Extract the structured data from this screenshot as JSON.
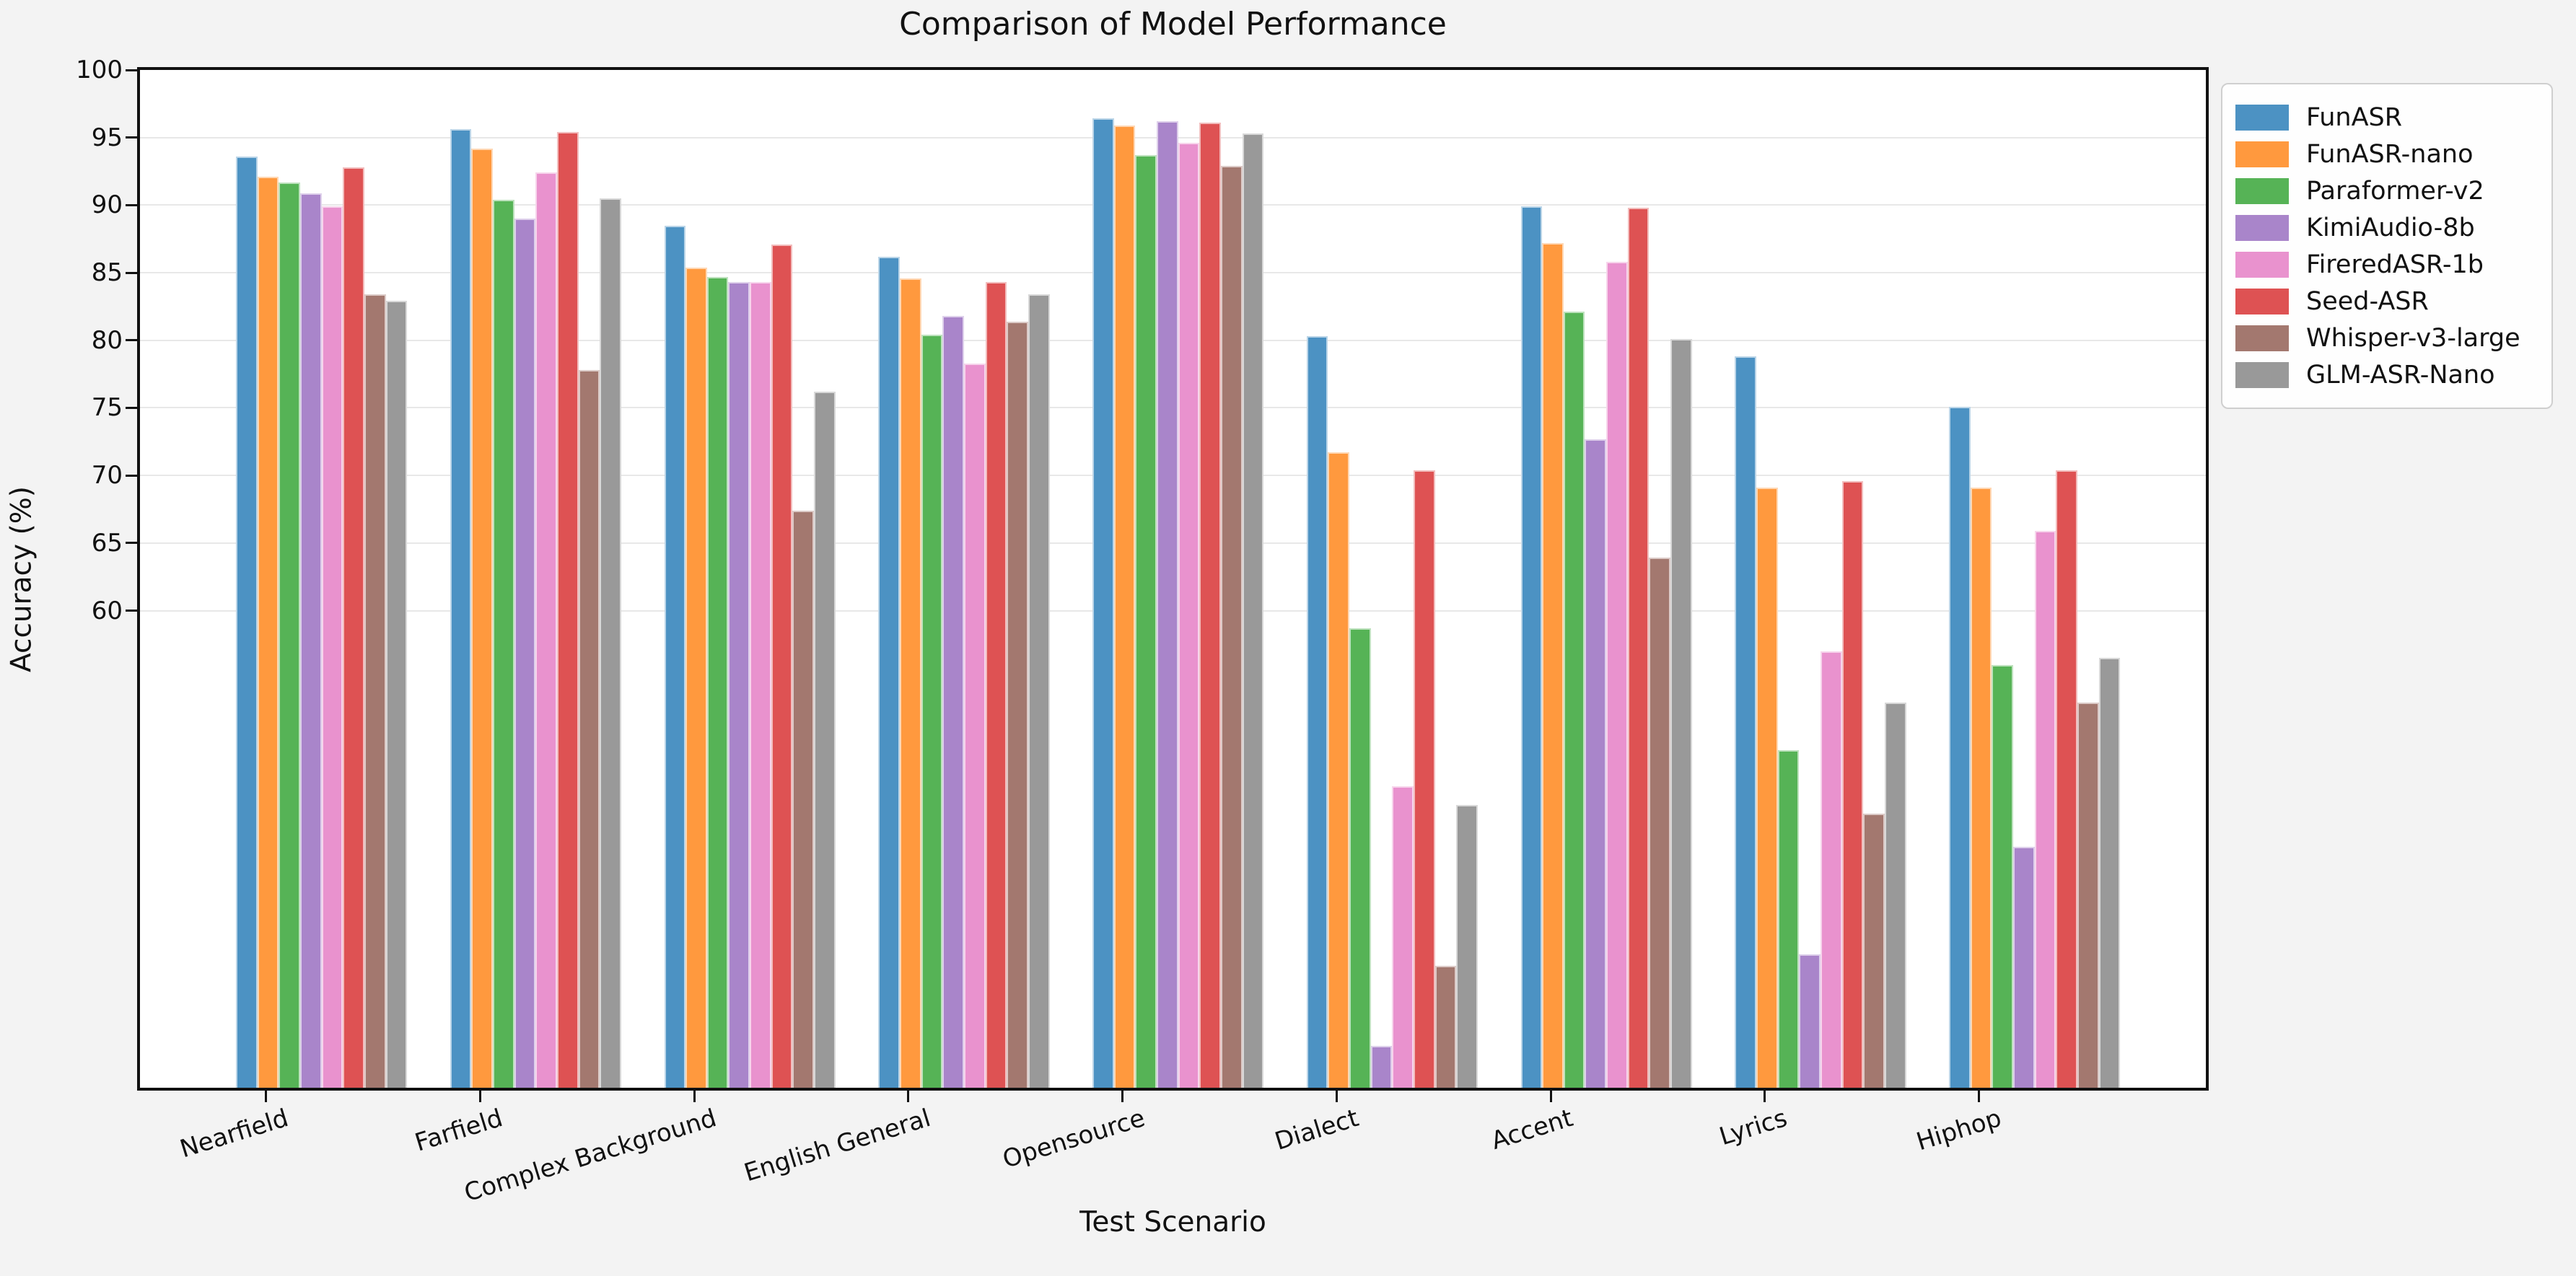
{
  "figure": {
    "title": "Comparison of Model Performance",
    "background_color": "#f3f3f3",
    "plot_background_color": "#ffffff",
    "grid_color": "#e8e8e8",
    "spine_color": "#111111"
  },
  "axes": {
    "xlabel": "Test Scenario",
    "ylabel": "Accuracy (%)"
  },
  "chart_data": {
    "type": "bar",
    "title": "Comparison of Model Performance",
    "xlabel": "Test Scenario",
    "ylabel": "Accuracy (%)",
    "ylim": [
      24.7,
      100
    ],
    "yticks": [
      60,
      65,
      70,
      75,
      80,
      85,
      90,
      95,
      100
    ],
    "grid": "horizontal",
    "legend_position": "outside upper right",
    "categories": [
      "Nearfield",
      "Farfield",
      "Complex Background",
      "English General",
      "Opensource",
      "Dialect",
      "Accent",
      "Lyrics",
      "Hiphop"
    ],
    "series": [
      {
        "name": "FunASR",
        "color": "#4C92C3",
        "values": [
          93.6,
          95.6,
          88.5,
          86.2,
          96.4,
          80.3,
          89.9,
          78.8,
          75.1
        ]
      },
      {
        "name": "FunASR-nano",
        "color": "#FF993E",
        "values": [
          92.1,
          94.2,
          85.4,
          84.6,
          95.9,
          71.7,
          87.2,
          69.1,
          69.1
        ]
      },
      {
        "name": "Paraformer-v2",
        "color": "#56B356",
        "values": [
          91.7,
          90.4,
          84.7,
          80.4,
          93.7,
          58.7,
          82.1,
          49.7,
          56.0
        ]
      },
      {
        "name": "KimiAudio-8b",
        "color": "#A985CA",
        "values": [
          90.9,
          89.0,
          84.3,
          81.8,
          96.2,
          27.8,
          72.7,
          34.6,
          42.5
        ]
      },
      {
        "name": "FireredASR-1b",
        "color": "#E992CE",
        "values": [
          89.9,
          92.4,
          84.3,
          78.3,
          94.6,
          47.0,
          85.8,
          57.0,
          65.9
        ]
      },
      {
        "name": "Seed-ASR",
        "color": "#DE5253",
        "values": [
          92.8,
          95.4,
          87.1,
          84.3,
          96.1,
          70.4,
          89.8,
          69.6,
          70.4
        ]
      },
      {
        "name": "Whisper-v3-large",
        "color": "#A3786F",
        "values": [
          83.4,
          77.8,
          67.4,
          81.4,
          92.9,
          33.7,
          63.9,
          45.0,
          53.2
        ]
      },
      {
        "name": "GLM-ASR-Nano",
        "color": "#999999",
        "values": [
          82.9,
          90.5,
          76.2,
          83.4,
          95.3,
          45.6,
          80.1,
          53.2,
          56.5
        ]
      }
    ]
  }
}
